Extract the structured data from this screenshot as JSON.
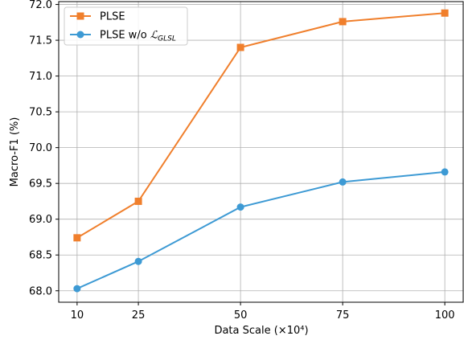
{
  "chart_data": {
    "type": "line",
    "title": "",
    "xlabel": "Data Scale (×10⁴)",
    "ylabel": "Macro-F1 (%)",
    "x": [
      10,
      25,
      50,
      75,
      100
    ],
    "x_ticks": [
      "10",
      "25",
      "50",
      "75",
      "100"
    ],
    "y_ticks": [
      "68.0",
      "68.5",
      "69.0",
      "69.5",
      "70.0",
      "70.5",
      "71.0",
      "71.5",
      "72.0"
    ],
    "xlim": [
      5.5,
      104.5
    ],
    "ylim": [
      67.84,
      72.04
    ],
    "grid": true,
    "legend_position": "top-left",
    "series": [
      {
        "name": "PLSE",
        "color": "#f07f2c",
        "marker": "square",
        "values": [
          68.74,
          69.25,
          71.4,
          71.76,
          71.88
        ]
      },
      {
        "name": "PLSE w/o ℒGLSL",
        "color": "#3d9ad4",
        "marker": "circle",
        "values": [
          68.03,
          68.41,
          69.17,
          69.52,
          69.66
        ]
      }
    ]
  },
  "legend": {
    "items": [
      {
        "label": "PLSE"
      },
      {
        "label_main": "PLSE w/o ",
        "label_script": "ℒ",
        "label_sub": "GLSL"
      }
    ]
  }
}
